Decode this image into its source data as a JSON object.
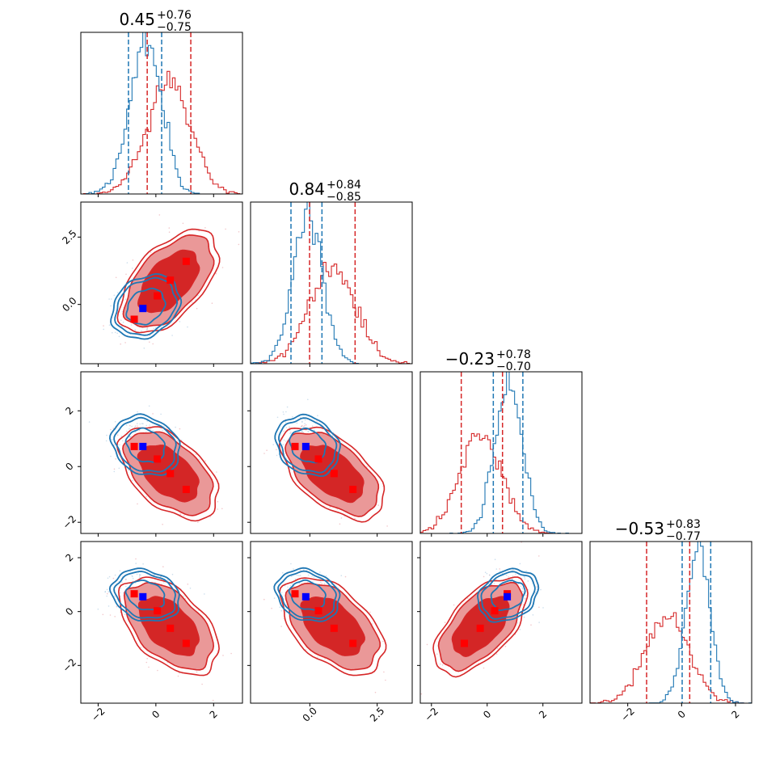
{
  "chart_data": {
    "type": "corner",
    "dimensions": 4,
    "colors": {
      "red": "#d62728",
      "blue": "#1f77b4",
      "marker_red": "#ff0000",
      "marker_blue": "#0000ff",
      "fill_dark": "#d42626",
      "fill_light": "#ea9898"
    },
    "panel_ranges": [
      [
        -2.6,
        3.0
      ],
      [
        -2.2,
        3.8
      ],
      [
        -2.4,
        3.4
      ],
      [
        -3.4,
        2.6
      ]
    ],
    "titles": [
      {
        "median": "0.45",
        "plus": "+0.76",
        "minus": "−0.75"
      },
      {
        "median": "0.84",
        "plus": "+0.84",
        "minus": "−0.85"
      },
      {
        "median": "−0.23",
        "plus": "+0.78",
        "minus": "−0.70"
      },
      {
        "median": "−0.53",
        "plus": "+0.83",
        "minus": "−0.77"
      }
    ],
    "red_dist": {
      "means": [
        0.45,
        0.84,
        -0.23,
        -0.53
      ],
      "sds": [
        0.76,
        0.85,
        0.74,
        0.8
      ]
    },
    "blue_dist": {
      "means": [
        -0.35,
        -0.08,
        0.75,
        0.6
      ],
      "sds": [
        0.55,
        0.55,
        0.5,
        0.45
      ]
    },
    "quantile_lines": {
      "red": [
        [
          -0.3,
          1.21
        ],
        [
          -0.01,
          1.68
        ],
        [
          -0.93,
          0.55
        ],
        [
          -1.3,
          0.3
        ]
      ],
      "blue": [
        [
          -0.95,
          0.2
        ],
        [
          -0.7,
          0.45
        ],
        [
          0.22,
          1.28
        ],
        [
          0.02,
          1.08
        ]
      ]
    },
    "tick_labels": {
      "x": [
        [
          {
            "v": -2,
            "t": "−2"
          },
          {
            "v": 0,
            "t": "0"
          },
          {
            "v": 2,
            "t": "2"
          }
        ],
        [
          {
            "v": 0,
            "t": "0.0"
          },
          {
            "v": 2.5,
            "t": "2.5"
          }
        ],
        [
          {
            "v": -2,
            "t": "−2"
          },
          {
            "v": 0,
            "t": "0"
          },
          {
            "v": 2,
            "t": "2"
          }
        ],
        [
          {
            "v": -2,
            "t": "−2"
          },
          {
            "v": 0,
            "t": "0"
          },
          {
            "v": 2,
            "t": "2"
          }
        ]
      ],
      "y": [
        [],
        [
          {
            "v": 0,
            "t": "0.0"
          },
          {
            "v": 2.5,
            "t": "2.5"
          }
        ],
        [
          {
            "v": -2,
            "t": "−2"
          },
          {
            "v": 0,
            "t": "0"
          },
          {
            "v": 2,
            "t": "2"
          }
        ],
        [
          {
            "v": -2,
            "t": "−2"
          },
          {
            "v": 0,
            "t": "0"
          },
          {
            "v": 2,
            "t": "2"
          }
        ]
      ]
    },
    "red_markers": [
      [
        -0.75,
        -0.55,
        0.72,
        0.66
      ],
      [
        0.05,
        0.32,
        0.27,
        0.03
      ],
      [
        0.5,
        0.9,
        -0.25,
        -0.62
      ],
      [
        1.05,
        1.6,
        -0.82,
        -1.18
      ]
    ],
    "blue_marker": [
      -0.45,
      -0.15,
      0.72,
      0.55
    ]
  }
}
